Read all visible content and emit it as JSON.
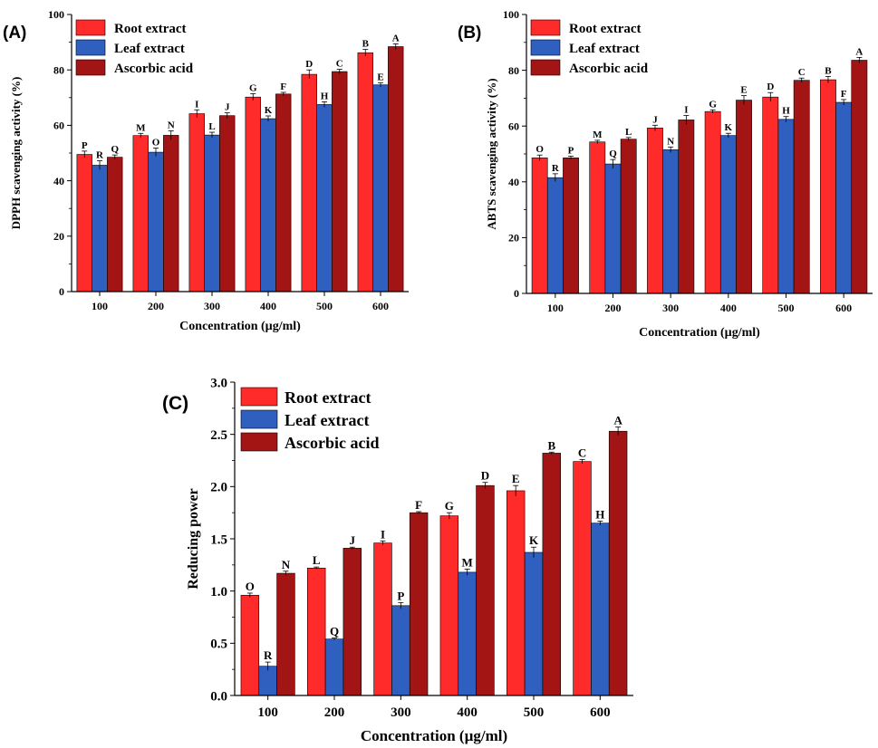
{
  "colors": {
    "root": "#ff2a2a",
    "leaf": "#2f5fbf",
    "ascorbic": "#a31414",
    "axis": "#000000",
    "error": "#000000"
  },
  "chart_data": [
    {
      "id": "A",
      "panel_label": "(A)",
      "type": "bar",
      "title": "",
      "xlabel": "Concentration (µg/ml)",
      "ylabel": "DPPH scavenging activity (%)",
      "ylim": [
        0,
        100
      ],
      "yticks": [
        "0",
        "20",
        "40",
        "60",
        "80",
        "100"
      ],
      "grid": false,
      "legend_position": "top-left",
      "categories": [
        "100",
        "200",
        "300",
        "400",
        "500",
        "600"
      ],
      "series": [
        {
          "name": "Root extract",
          "color_key": "root",
          "values": [
            49.5,
            56.3,
            64.2,
            70.2,
            78.4,
            86.2
          ],
          "errors": [
            1.2,
            0.8,
            1.4,
            1.2,
            1.6,
            1.2
          ],
          "labels": [
            "P",
            "M",
            "I",
            "G",
            "D",
            "B"
          ]
        },
        {
          "name": "Leaf extract",
          "color_key": "leaf",
          "values": [
            45.6,
            50.3,
            56.5,
            62.4,
            67.5,
            74.6
          ],
          "errors": [
            1.6,
            1.5,
            1.0,
            1.0,
            1.0,
            0.8
          ],
          "labels": [
            "R",
            "O",
            "L",
            "K",
            "H",
            "E"
          ]
        },
        {
          "name": "Ascorbic acid",
          "color_key": "ascorbic",
          "values": [
            48.5,
            56.4,
            63.5,
            71.3,
            79.4,
            88.4
          ],
          "errors": [
            0.8,
            1.6,
            1.0,
            0.6,
            0.8,
            1.0
          ],
          "labels": [
            "Q",
            "N",
            "J",
            "F",
            "C",
            "A"
          ]
        }
      ]
    },
    {
      "id": "B",
      "panel_label": "(B)",
      "type": "bar",
      "title": "",
      "xlabel": "Concentration (µg/ml)",
      "ylabel": "ABTS scavenging activity (%)",
      "ylim": [
        0,
        100
      ],
      "yticks": [
        "0",
        "20",
        "40",
        "60",
        "80",
        "100"
      ],
      "grid": false,
      "legend_position": "top-left",
      "categories": [
        "100",
        "200",
        "300",
        "400",
        "500",
        "600"
      ],
      "series": [
        {
          "name": "Root extract",
          "color_key": "root",
          "values": [
            48.6,
            54.3,
            59.3,
            65.2,
            70.4,
            76.6
          ],
          "errors": [
            1.0,
            0.6,
            1.0,
            0.6,
            1.6,
            1.2
          ],
          "labels": [
            "O",
            "M",
            "J",
            "G",
            "D",
            "B"
          ]
        },
        {
          "name": "Leaf extract",
          "color_key": "leaf",
          "values": [
            41.5,
            46.4,
            51.5,
            56.6,
            62.4,
            68.5
          ],
          "errors": [
            1.4,
            1.6,
            1.0,
            0.8,
            1.0,
            1.0
          ],
          "labels": [
            "R",
            "Q",
            "N",
            "K",
            "H",
            "F"
          ]
        },
        {
          "name": "Ascorbic acid",
          "color_key": "ascorbic",
          "values": [
            48.6,
            55.3,
            62.2,
            69.3,
            76.4,
            83.6
          ],
          "errors": [
            0.6,
            0.6,
            1.6,
            1.6,
            0.8,
            1.0
          ],
          "labels": [
            "P",
            "L",
            "I",
            "E",
            "C",
            "A"
          ]
        }
      ]
    },
    {
      "id": "C",
      "panel_label": "(C)",
      "type": "bar",
      "title": "",
      "xlabel": "Concentration (µg/ml)",
      "ylabel": "Reducing power",
      "ylim": [
        0,
        3.0
      ],
      "yticks": [
        "0.0",
        "0.5",
        "1.0",
        "1.5",
        "2.0",
        "2.5",
        "3.0"
      ],
      "grid": false,
      "legend_position": "top-left",
      "categories": [
        "100",
        "200",
        "300",
        "400",
        "500",
        "600"
      ],
      "series": [
        {
          "name": "Root extract",
          "color_key": "root",
          "values": [
            0.96,
            1.22,
            1.46,
            1.72,
            1.96,
            2.24
          ],
          "errors": [
            0.02,
            0.01,
            0.02,
            0.03,
            0.05,
            0.02
          ],
          "labels": [
            "O",
            "L",
            "I",
            "G",
            "E",
            "C"
          ]
        },
        {
          "name": "Leaf extract",
          "color_key": "leaf",
          "values": [
            0.28,
            0.54,
            0.86,
            1.18,
            1.37,
            1.65
          ],
          "errors": [
            0.04,
            0.01,
            0.03,
            0.03,
            0.05,
            0.02
          ],
          "labels": [
            "R",
            "Q",
            "P",
            "M",
            "K",
            "H"
          ]
        },
        {
          "name": "Ascorbic acid",
          "color_key": "ascorbic",
          "values": [
            1.17,
            1.41,
            1.75,
            2.01,
            2.32,
            2.53
          ],
          "errors": [
            0.02,
            0.01,
            0.01,
            0.03,
            0.01,
            0.04
          ],
          "labels": [
            "N",
            "J",
            "F",
            "D",
            "B",
            "A"
          ]
        }
      ]
    }
  ]
}
